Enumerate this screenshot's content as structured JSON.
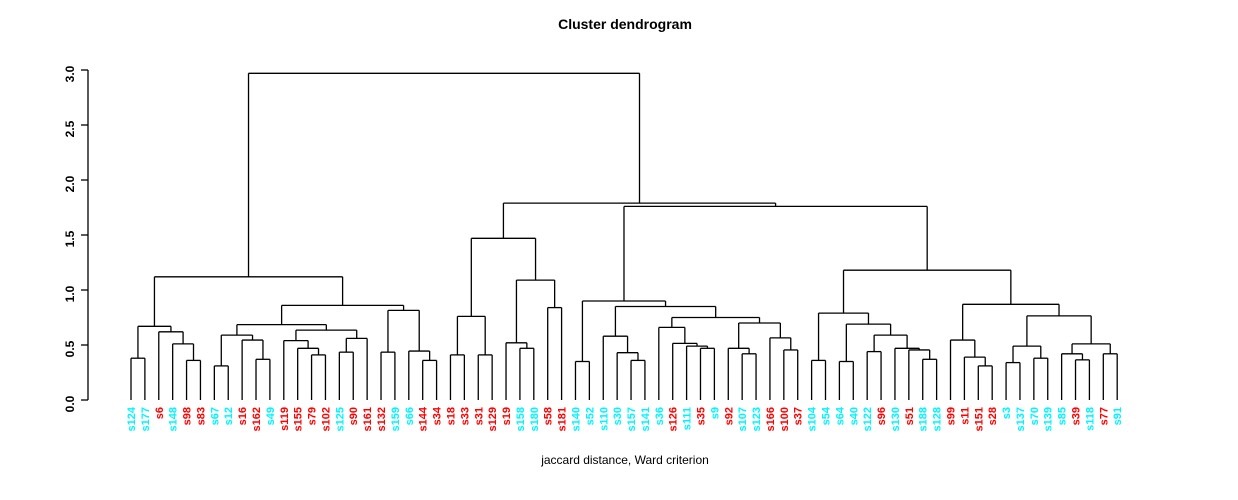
{
  "chart_data": {
    "type": "dendrogram",
    "title": "Cluster dendrogram",
    "xlabel": "jaccard distance, Ward criterion",
    "ylabel": "",
    "ylim": [
      0,
      3
    ],
    "yticks": [
      "0.0",
      "0.5",
      "1.0",
      "1.5",
      "2.0",
      "2.5",
      "3.0"
    ],
    "grid": false,
    "line_color": "#000000",
    "label_colors": {
      "cyan": "#00F5FF",
      "red": "#FF0000"
    },
    "leaves": [
      {
        "label": "s124",
        "color": "cyan"
      },
      {
        "label": "s177",
        "color": "cyan"
      },
      {
        "label": "s6",
        "color": "red"
      },
      {
        "label": "s148",
        "color": "cyan"
      },
      {
        "label": "s98",
        "color": "red"
      },
      {
        "label": "s83",
        "color": "red"
      },
      {
        "label": "s67",
        "color": "cyan"
      },
      {
        "label": "s12",
        "color": "cyan"
      },
      {
        "label": "s16",
        "color": "red"
      },
      {
        "label": "s162",
        "color": "red"
      },
      {
        "label": "s49",
        "color": "cyan"
      },
      {
        "label": "s119",
        "color": "red"
      },
      {
        "label": "s155",
        "color": "red"
      },
      {
        "label": "s79",
        "color": "red"
      },
      {
        "label": "s102",
        "color": "red"
      },
      {
        "label": "s125",
        "color": "cyan"
      },
      {
        "label": "s90",
        "color": "red"
      },
      {
        "label": "s161",
        "color": "red"
      },
      {
        "label": "s132",
        "color": "red"
      },
      {
        "label": "s159",
        "color": "cyan"
      },
      {
        "label": "s66",
        "color": "cyan"
      },
      {
        "label": "s144",
        "color": "red"
      },
      {
        "label": "s34",
        "color": "red"
      },
      {
        "label": "s18",
        "color": "red"
      },
      {
        "label": "s33",
        "color": "red"
      },
      {
        "label": "s31",
        "color": "red"
      },
      {
        "label": "s129",
        "color": "red"
      },
      {
        "label": "s19",
        "color": "red"
      },
      {
        "label": "s158",
        "color": "cyan"
      },
      {
        "label": "s180",
        "color": "cyan"
      },
      {
        "label": "s58",
        "color": "red"
      },
      {
        "label": "s181",
        "color": "red"
      },
      {
        "label": "s140",
        "color": "cyan"
      },
      {
        "label": "s52",
        "color": "cyan"
      },
      {
        "label": "s110",
        "color": "cyan"
      },
      {
        "label": "s30",
        "color": "cyan"
      },
      {
        "label": "s157",
        "color": "cyan"
      },
      {
        "label": "s141",
        "color": "cyan"
      },
      {
        "label": "s36",
        "color": "cyan"
      },
      {
        "label": "s126",
        "color": "red"
      },
      {
        "label": "s111",
        "color": "cyan"
      },
      {
        "label": "s35",
        "color": "red"
      },
      {
        "label": "s9",
        "color": "cyan"
      },
      {
        "label": "s92",
        "color": "red"
      },
      {
        "label": "s107",
        "color": "cyan"
      },
      {
        "label": "s123",
        "color": "cyan"
      },
      {
        "label": "s166",
        "color": "red"
      },
      {
        "label": "s100",
        "color": "red"
      },
      {
        "label": "s37",
        "color": "red"
      },
      {
        "label": "s104",
        "color": "cyan"
      },
      {
        "label": "s54",
        "color": "cyan"
      },
      {
        "label": "s64",
        "color": "cyan"
      },
      {
        "label": "s40",
        "color": "cyan"
      },
      {
        "label": "s122",
        "color": "cyan"
      },
      {
        "label": "s96",
        "color": "red"
      },
      {
        "label": "s130",
        "color": "cyan"
      },
      {
        "label": "s51",
        "color": "red"
      },
      {
        "label": "s188",
        "color": "cyan"
      },
      {
        "label": "s128",
        "color": "cyan"
      },
      {
        "label": "s99",
        "color": "red"
      },
      {
        "label": "s11",
        "color": "red"
      },
      {
        "label": "s151",
        "color": "red"
      },
      {
        "label": "s28",
        "color": "red"
      },
      {
        "label": "s3",
        "color": "cyan"
      },
      {
        "label": "s137",
        "color": "cyan"
      },
      {
        "label": "s70",
        "color": "cyan"
      },
      {
        "label": "s139",
        "color": "cyan"
      },
      {
        "label": "s85",
        "color": "cyan"
      },
      {
        "label": "s39",
        "color": "red"
      },
      {
        "label": "s118",
        "color": "cyan"
      },
      {
        "label": "s77",
        "color": "red"
      },
      {
        "label": "s91",
        "color": "cyan"
      }
    ],
    "tree": {
      "h": 2.97,
      "c": [
        {
          "h": 1.12,
          "c": [
            {
              "h": 0.67,
              "c": [
                {
                  "h": 0.38,
                  "c": [
                    "s124",
                    "s177"
                  ]
                },
                {
                  "h": 0.62,
                  "c": [
                    "s6",
                    {
                      "h": 0.51,
                      "c": [
                        "s148",
                        {
                          "h": 0.36,
                          "c": [
                            "s98",
                            "s83"
                          ]
                        }
                      ]
                    }
                  ]
                }
              ]
            },
            {
              "h": 0.86,
              "c": [
                {
                  "h": 0.685,
                  "c": [
                    {
                      "h": 0.59,
                      "c": [
                        {
                          "h": 0.31,
                          "c": [
                            "s67",
                            "s12"
                          ]
                        },
                        {
                          "h": 0.545,
                          "c": [
                            "s16",
                            {
                              "h": 0.37,
                              "c": [
                                "s162",
                                "s49"
                              ]
                            }
                          ]
                        }
                      ]
                    },
                    {
                      "h": 0.635,
                      "c": [
                        {
                          "h": 0.54,
                          "c": [
                            "s119",
                            {
                              "h": 0.47,
                              "c": [
                                "s155",
                                {
                                  "h": 0.41,
                                  "c": [
                                    "s79",
                                    "s102"
                                  ]
                                }
                              ]
                            }
                          ]
                        },
                        {
                          "h": 0.56,
                          "c": [
                            {
                              "h": 0.435,
                              "c": [
                                "s125",
                                "s90"
                              ]
                            },
                            "s161"
                          ]
                        }
                      ]
                    }
                  ]
                },
                {
                  "h": 0.815,
                  "c": [
                    {
                      "h": 0.435,
                      "c": [
                        "s132",
                        "s159"
                      ]
                    },
                    {
                      "h": 0.445,
                      "c": [
                        "s66",
                        {
                          "h": 0.36,
                          "c": [
                            "s144",
                            "s34"
                          ]
                        }
                      ]
                    }
                  ]
                }
              ]
            }
          ]
        },
        {
          "h": 1.79,
          "c": [
            {
              "h": 1.47,
              "c": [
                {
                  "h": 0.76,
                  "c": [
                    {
                      "h": 0.41,
                      "c": [
                        "s18",
                        "s33"
                      ]
                    },
                    {
                      "h": 0.41,
                      "c": [
                        "s31",
                        "s129"
                      ]
                    }
                  ]
                },
                {
                  "h": 1.09,
                  "c": [
                    {
                      "h": 0.52,
                      "c": [
                        "s19",
                        {
                          "h": 0.47,
                          "c": [
                            "s158",
                            "s180"
                          ]
                        }
                      ]
                    },
                    {
                      "h": 0.84,
                      "c": [
                        "s58",
                        "s181"
                      ]
                    }
                  ]
                }
              ]
            },
            {
              "h": 1.76,
              "c": [
                {
                  "h": 0.9,
                  "c": [
                    {
                      "h": 0.35,
                      "c": [
                        "s140",
                        "s52"
                      ]
                    },
                    {
                      "h": 0.85,
                      "c": [
                        {
                          "h": 0.58,
                          "c": [
                            "s110",
                            {
                              "h": 0.43,
                              "c": [
                                "s30",
                                {
                                  "h": 0.36,
                                  "c": [
                                    "s157",
                                    "s141"
                                  ]
                                }
                              ]
                            }
                          ]
                        },
                        {
                          "h": 0.75,
                          "c": [
                            {
                              "h": 0.66,
                              "c": [
                                "s36",
                                {
                                  "h": 0.515,
                                  "c": [
                                    "s126",
                                    {
                                      "h": 0.49,
                                      "c": [
                                        "s111",
                                        {
                                          "h": 0.47,
                                          "c": [
                                            "s35",
                                            "s9"
                                          ]
                                        }
                                      ]
                                    }
                                  ]
                                }
                              ]
                            },
                            {
                              "h": 0.7,
                              "c": [
                                {
                                  "h": 0.47,
                                  "c": [
                                    "s92",
                                    {
                                      "h": 0.42,
                                      "c": [
                                        "s107",
                                        "s123"
                                      ]
                                    }
                                  ]
                                },
                                {
                                  "h": 0.565,
                                  "c": [
                                    "s166",
                                    {
                                      "h": 0.455,
                                      "c": [
                                        "s100",
                                        "s37"
                                      ]
                                    }
                                  ]
                                }
                              ]
                            }
                          ]
                        }
                      ]
                    }
                  ]
                },
                {
                  "h": 1.18,
                  "c": [
                    {
                      "h": 0.79,
                      "c": [
                        {
                          "h": 0.36,
                          "c": [
                            "s104",
                            "s54"
                          ]
                        },
                        {
                          "h": 0.69,
                          "c": [
                            {
                              "h": 0.35,
                              "c": [
                                "s64",
                                "s40"
                              ]
                            },
                            {
                              "h": 0.59,
                              "c": [
                                {
                                  "h": 0.44,
                                  "c": [
                                    "s122",
                                    "s96"
                                  ]
                                },
                                {
                                  "h": 0.47,
                                  "c": [
                                    "s130",
                                    {
                                      "h": 0.455,
                                      "c": [
                                        "s51",
                                        {
                                          "h": 0.37,
                                          "c": [
                                            "s188",
                                            "s128"
                                          ]
                                        }
                                      ]
                                    }
                                  ]
                                }
                              ]
                            }
                          ]
                        }
                      ]
                    },
                    {
                      "h": 0.87,
                      "c": [
                        {
                          "h": 0.545,
                          "c": [
                            "s99",
                            {
                              "h": 0.39,
                              "c": [
                                "s11",
                                {
                                  "h": 0.31,
                                  "c": [
                                    "s151",
                                    "s28"
                                  ]
                                }
                              ]
                            }
                          ]
                        },
                        {
                          "h": 0.765,
                          "c": [
                            {
                              "h": 0.49,
                              "c": [
                                {
                                  "h": 0.34,
                                  "c": [
                                    "s3",
                                    "s137"
                                  ]
                                },
                                {
                                  "h": 0.38,
                                  "c": [
                                    "s70",
                                    "s139"
                                  ]
                                }
                              ]
                            },
                            {
                              "h": 0.51,
                              "c": [
                                {
                                  "h": 0.42,
                                  "c": [
                                    "s85",
                                    {
                                      "h": 0.365,
                                      "c": [
                                        "s39",
                                        "s118"
                                      ]
                                    }
                                  ]
                                },
                                {
                                  "h": 0.42,
                                  "c": [
                                    "s77",
                                    "s91"
                                  ]
                                }
                              ]
                            }
                          ]
                        }
                      ]
                    }
                  ]
                }
              ]
            }
          ]
        }
      ]
    }
  }
}
